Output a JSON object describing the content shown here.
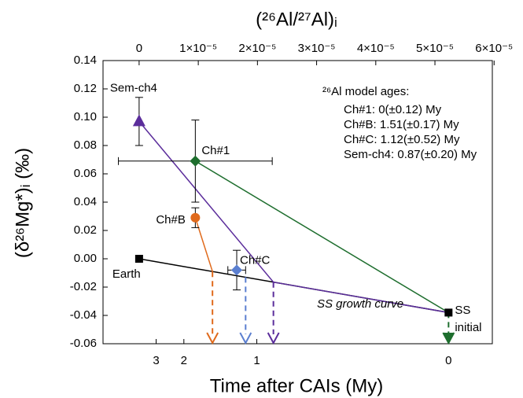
{
  "chart_data": {
    "type": "scatter",
    "x_label": "(²⁶Al/²⁷Al)ᵢ",
    "y_label": "(δ²⁶Mg*)ᵢ (‰)",
    "x2_label": "Time after CAIs (My)",
    "xlim": [
      -6.1e-06,
      5.97e-05
    ],
    "xticks": [
      0,
      {
        "value": 1e-05,
        "label": "1×10⁻⁵"
      },
      {
        "value": 2e-05,
        "label": "2×10⁻⁵"
      },
      {
        "value": 3e-05,
        "label": "3×10⁻⁵"
      },
      {
        "value": 4e-05,
        "label": "4×10⁻⁵"
      },
      {
        "value": 5e-05,
        "label": "5×10⁻⁵"
      },
      {
        "value": 6e-05,
        "label": "6×10⁻⁵"
      }
    ],
    "ylim": [
      -0.06,
      0.14
    ],
    "yticks": [
      0.14,
      0.12,
      {
        "value": 0.1,
        "label": "0.10"
      },
      0.08,
      0.06,
      0.04,
      0.02,
      {
        "value": 0,
        "label": "0.00"
      },
      -0.02,
      -0.04,
      -0.06
    ],
    "x2ticks": [
      3,
      2,
      1,
      0
    ],
    "series": [
      {
        "name": "Sem-ch4",
        "color": "#5b2d9b",
        "marker": "triangle",
        "x": [
          0
        ],
        "values": [
          0.097
        ],
        "yerr": [
          0.017
        ]
      },
      {
        "name": "Ch#1",
        "color": "#1e6e2e",
        "marker": "diamond",
        "x": [
          9.5e-06
        ],
        "values": [
          0.069
        ],
        "yerr": [
          0.029
        ],
        "xerr": [
          1.3e-05
        ]
      },
      {
        "name": "Ch#B",
        "color": "#e06a1c",
        "marker": "circle",
        "x": [
          9.5e-06
        ],
        "values": [
          0.029
        ],
        "yerr": [
          0.007
        ]
      },
      {
        "name": "Ch#C",
        "color": "#5b7fd0",
        "marker": "diamond",
        "x": [
          1.65e-05
        ],
        "values": [
          -0.008
        ],
        "yerr": [
          0.014
        ],
        "xerr": [
          1.5e-06
        ]
      },
      {
        "name": "Earth",
        "color": "#000000",
        "marker": "square",
        "x": [
          0
        ],
        "values": [
          0
        ]
      },
      {
        "name": "SS initial",
        "color": "#000000",
        "marker": "square",
        "x": [
          5.23e-05
        ],
        "values": [
          -0.038
        ]
      }
    ],
    "lines": [
      {
        "color": "#000000",
        "x": [
          0,
          5.23e-05
        ],
        "values": [
          0,
          -0.038
        ]
      },
      {
        "color": "#1e6e2e",
        "x": [
          9.5e-06,
          5.23e-05
        ],
        "values": [
          0.069,
          -0.038
        ]
      },
      {
        "color": "#5b2d9b",
        "x": [
          0,
          2.27e-05,
          5.23e-05
        ],
        "values": [
          0.097,
          -0.0165,
          -0.038
        ]
      },
      {
        "color": "#e06a1c",
        "x": [
          9.5e-06,
          1.24e-05
        ],
        "values": [
          0.029,
          -0.009
        ]
      }
    ],
    "arrows": [
      {
        "color": "#e06a1c",
        "x": 1.24e-05,
        "y": -0.009
      },
      {
        "color": "#5b7fd0",
        "x": 1.8e-05,
        "y": -0.013
      },
      {
        "color": "#5b2d9b",
        "x": 2.27e-05,
        "y": -0.0165
      },
      {
        "color": "#1e6e2e",
        "x": 5.23e-05,
        "y": -0.038
      }
    ],
    "curve_label": "SS growth curve",
    "model_ages": {
      "title": "²⁶Al model ages:",
      "entries": [
        {
          "text": "Ch#1: 0(±0.12) My",
          "color": "#1e6e2e"
        },
        {
          "text": "Ch#B: 1.51(±0.17) My",
          "color": "#e06a1c"
        },
        {
          "text": "Ch#C: 1.12(±0.52) My",
          "color": "#5b7fd0"
        },
        {
          "text": "Sem-ch4: 0.87(±0.20) My",
          "color": "#5b2d9b"
        }
      ]
    }
  }
}
